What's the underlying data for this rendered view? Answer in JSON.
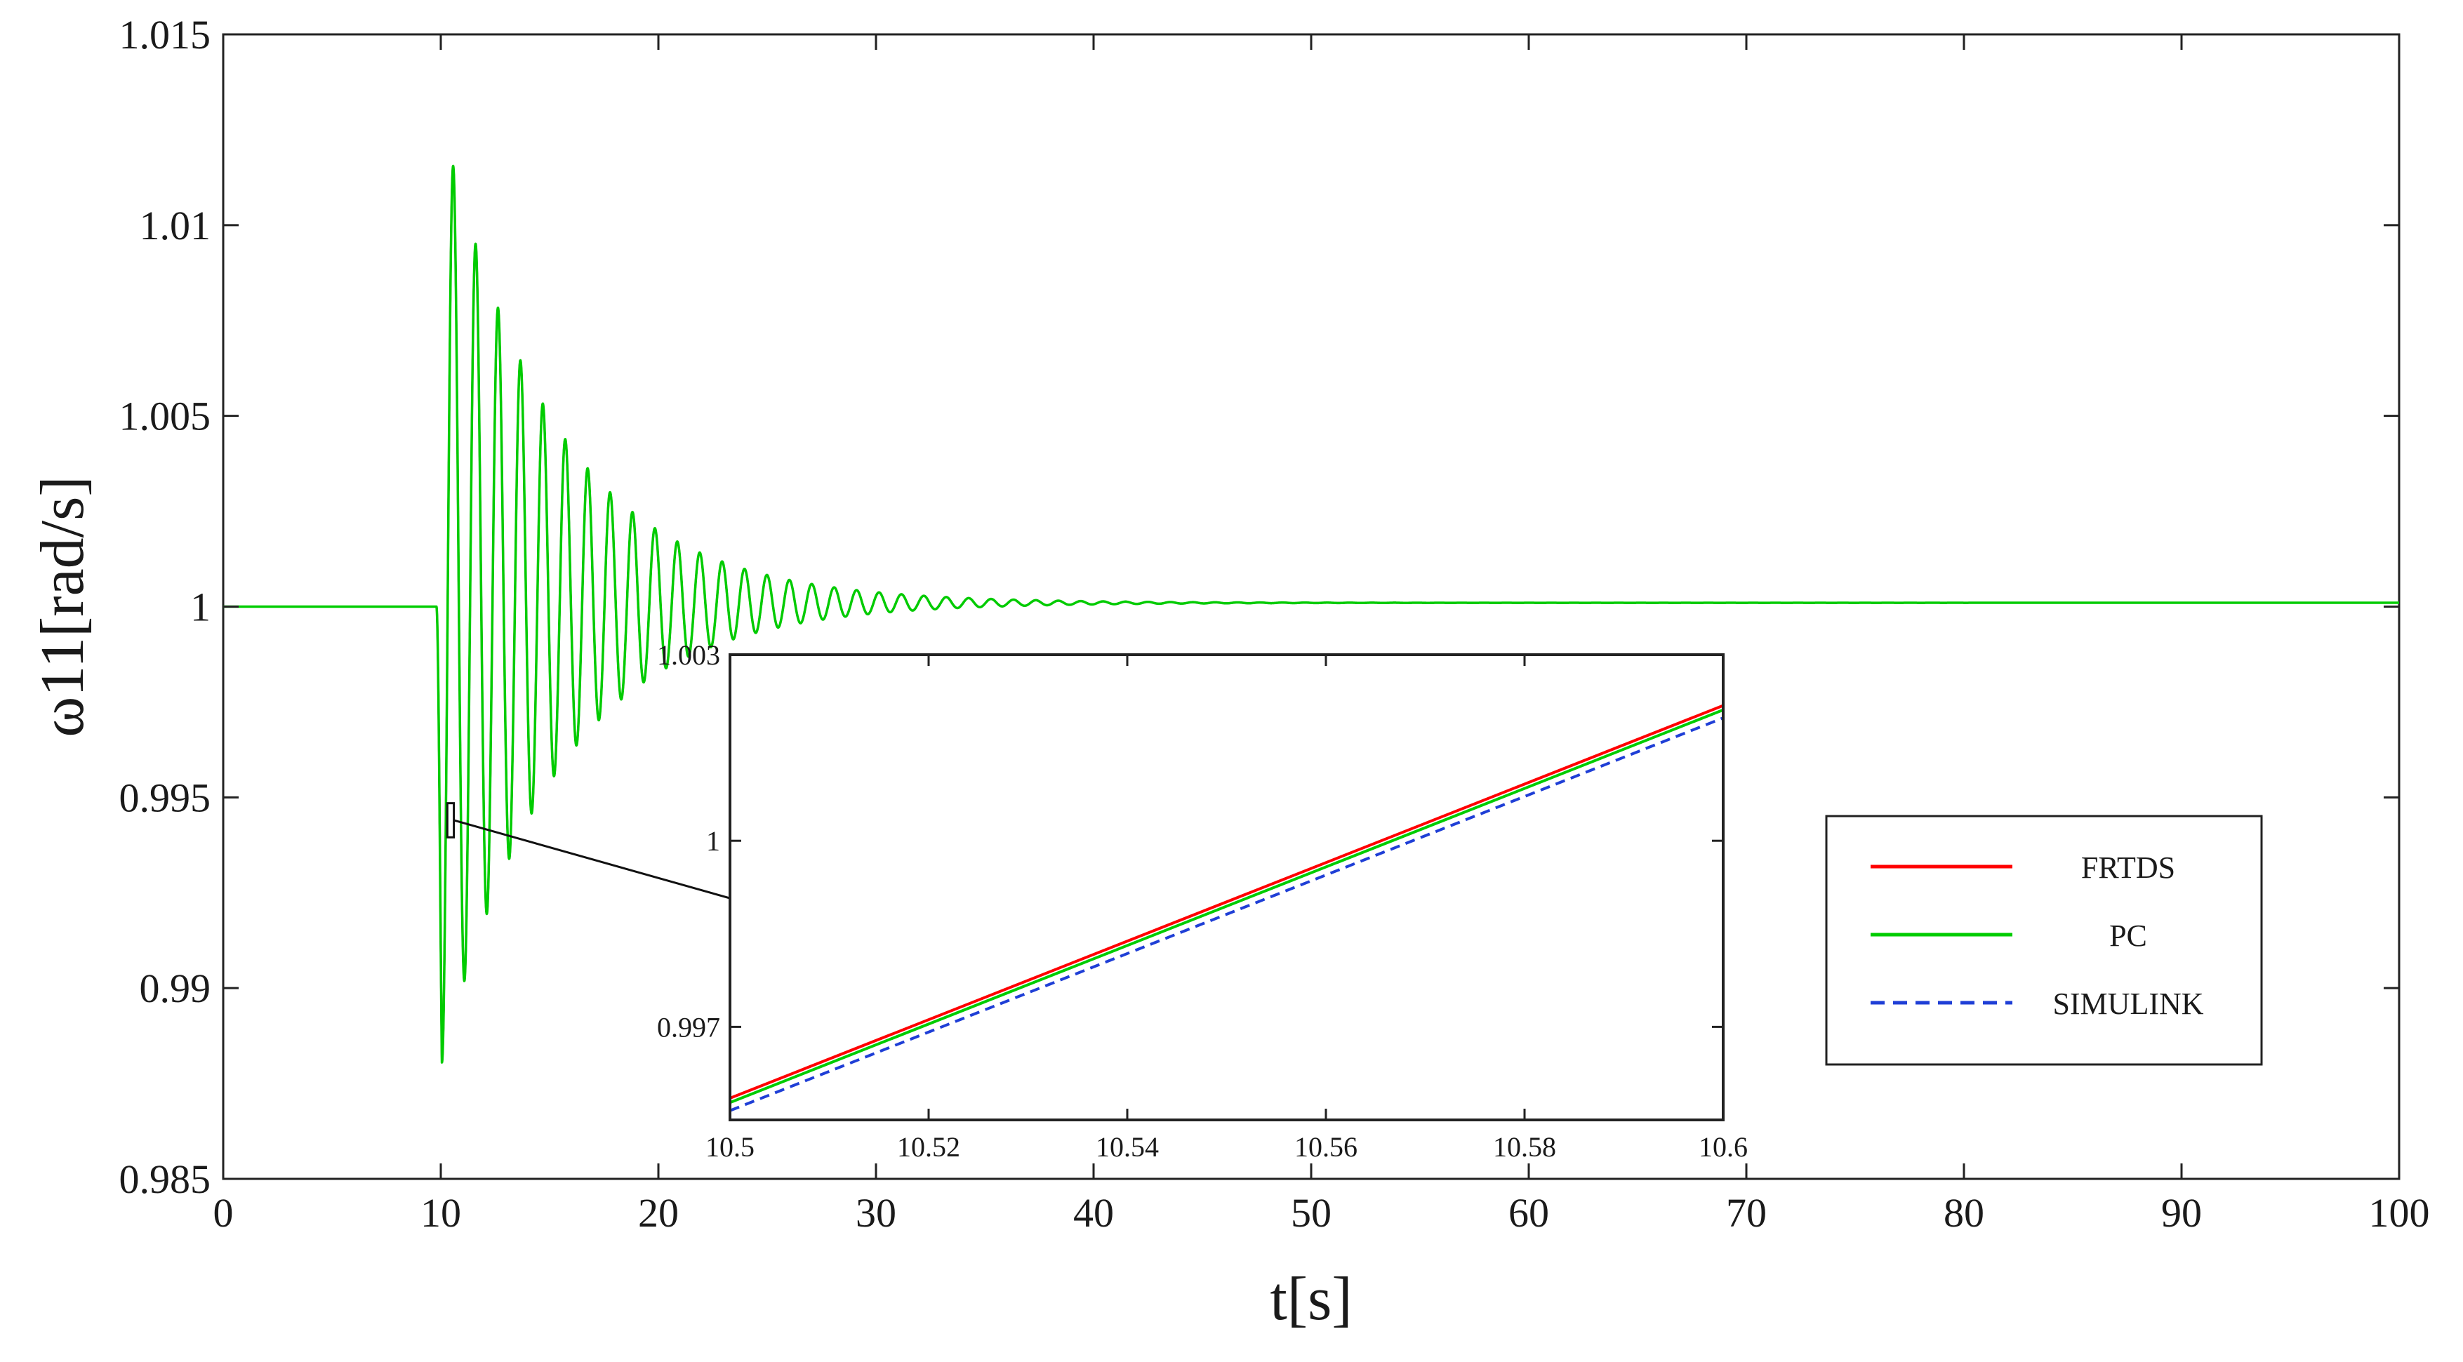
{
  "chart_data": [
    {
      "type": "line",
      "title": "",
      "xlabel": "t[s]",
      "ylabel": "ω11[rad/s]",
      "xlim": [
        0,
        100
      ],
      "ylim": [
        0.985,
        1.015
      ],
      "xticks": [
        0,
        10,
        20,
        30,
        40,
        50,
        60,
        70,
        80,
        90,
        100
      ],
      "xtick_labels": [
        "0",
        "10",
        "20",
        "30",
        "40",
        "50",
        "60",
        "70",
        "80",
        "90",
        "100"
      ],
      "yticks": [
        0.985,
        0.99,
        0.995,
        1,
        1.005,
        1.01,
        1.015
      ],
      "ytick_labels": [
        "0.985",
        "0.99",
        "0.995",
        "1",
        "1.005",
        "1.01",
        "1.015"
      ],
      "grid": false,
      "legend_position": "right",
      "disturbance": {
        "baseline": 1.0,
        "start_time": 9.8,
        "period_s": 1.03,
        "decay_per_s": 0.19,
        "first_peak": 1.0123,
        "first_trough": 0.9869,
        "settled_value": 1.0001
      },
      "series": [
        {
          "name": "FRTDS",
          "color": "#ff0000",
          "dash": "solid",
          "x": [
            0,
            9.8,
            10.3,
            10.7,
            11.2,
            11.7,
            12.2,
            12.8,
            13.3,
            13.8,
            14.3,
            14.8,
            15.3,
            16.0,
            17.0,
            18.0,
            20.0,
            22.0,
            25.0,
            30.0,
            40.0,
            50.0,
            60.0,
            70.0,
            80.0,
            90.0,
            100.0
          ],
          "values": [
            1.0,
            1.0,
            0.9942,
            1.0123,
            0.9869,
            1.0118,
            0.9898,
            1.0085,
            0.9934,
            1.007,
            0.9954,
            1.0055,
            0.997,
            1.004,
            1.0025,
            1.0016,
            1.001,
            1.0006,
            1.0003,
            1.0001,
            1.0001,
            1.0001,
            1.0001,
            1.0001,
            1.0001,
            1.0001,
            1.0001
          ]
        },
        {
          "name": "PC",
          "color": "#00cc00",
          "dash": "solid",
          "x": [
            0,
            9.8,
            10.3,
            10.7,
            11.2,
            11.7,
            12.2,
            12.8,
            13.3,
            13.8,
            14.3,
            14.8,
            15.3,
            16.0,
            17.0,
            18.0,
            20.0,
            22.0,
            25.0,
            30.0,
            40.0,
            50.0,
            60.0,
            70.0,
            80.0,
            90.0,
            100.0
          ],
          "values": [
            1.0,
            1.0,
            0.9942,
            1.0123,
            0.9869,
            1.0118,
            0.9898,
            1.0085,
            0.9934,
            1.007,
            0.9954,
            1.0055,
            0.997,
            1.004,
            1.0025,
            1.0016,
            1.001,
            1.0006,
            1.0003,
            1.0001,
            1.0001,
            1.0001,
            1.0001,
            1.0001,
            1.0001,
            1.0001,
            1.0001
          ]
        },
        {
          "name": "SIMULINK",
          "color": "#1f3fd6",
          "dash": "dashed",
          "x": [
            0,
            9.8,
            10.3,
            10.7,
            11.2,
            11.7,
            12.2,
            12.8,
            13.3,
            13.8,
            14.3,
            14.8,
            15.3,
            16.0,
            17.0,
            18.0,
            20.0,
            22.0,
            25.0,
            30.0,
            40.0,
            50.0,
            60.0,
            70.0,
            80.0,
            90.0,
            100.0
          ],
          "values": [
            1.0,
            1.0,
            0.9942,
            1.0123,
            0.9869,
            1.0118,
            0.9898,
            1.0085,
            0.9934,
            1.007,
            0.9954,
            1.0055,
            0.997,
            1.004,
            1.0025,
            1.0016,
            1.001,
            1.0006,
            1.0003,
            1.0001,
            1.0001,
            1.0001,
            1.0001,
            1.0001,
            1.0001,
            1.0001,
            1.0001
          ]
        }
      ],
      "zoom_region": {
        "x": [
          10.3,
          10.6
        ],
        "y": [
          0.9941,
          0.9947
        ]
      }
    },
    {
      "type": "line",
      "title": "",
      "xlabel": "",
      "ylabel": "",
      "xlim": [
        10.5,
        10.6
      ],
      "ylim": [
        0.9955,
        1.003
      ],
      "xticks": [
        10.5,
        10.52,
        10.54,
        10.56,
        10.58,
        10.6
      ],
      "xtick_labels": [
        "10.5",
        "10.52",
        "10.54",
        "10.56",
        "10.58",
        "10.6"
      ],
      "yticks": [
        0.997,
        1,
        1.003
      ],
      "ytick_labels": [
        "0.997",
        "1",
        "1.003"
      ],
      "grid": false,
      "series": [
        {
          "name": "FRTDS",
          "color": "#ff0000",
          "dash": "solid",
          "x": [
            10.5,
            10.6
          ],
          "values": [
            0.99585,
            1.00218
          ]
        },
        {
          "name": "PC",
          "color": "#00cc00",
          "dash": "solid",
          "x": [
            10.5,
            10.6
          ],
          "values": [
            0.99578,
            1.00211
          ]
        },
        {
          "name": "SIMULINK",
          "color": "#1f3fd6",
          "dash": "dashed",
          "x": [
            10.5,
            10.6
          ],
          "values": [
            0.99565,
            1.00198
          ]
        }
      ]
    }
  ]
}
